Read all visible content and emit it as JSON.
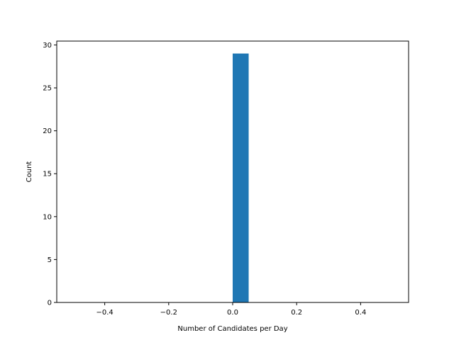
{
  "chart_data": {
    "type": "bar",
    "title": "",
    "xlabel": "Number of Candidates per Day",
    "ylabel": "Count",
    "xlim": [
      -0.55,
      0.55
    ],
    "ylim": [
      0,
      30.45
    ],
    "bars": [
      {
        "x_start": 0.0,
        "x_end": 0.05,
        "value": 29
      }
    ],
    "x_ticks": [
      {
        "value": -0.4,
        "label": "−0.4"
      },
      {
        "value": -0.2,
        "label": "−0.2"
      },
      {
        "value": 0.0,
        "label": "0.0"
      },
      {
        "value": 0.2,
        "label": "0.2"
      },
      {
        "value": 0.4,
        "label": "0.4"
      }
    ],
    "y_ticks": [
      {
        "value": 0,
        "label": "0"
      },
      {
        "value": 5,
        "label": "5"
      },
      {
        "value": 10,
        "label": "10"
      },
      {
        "value": 15,
        "label": "15"
      },
      {
        "value": 20,
        "label": "20"
      },
      {
        "value": 25,
        "label": "25"
      },
      {
        "value": 30,
        "label": "30"
      }
    ],
    "grid": false,
    "colors": {
      "bar": "#1f77b4",
      "axis": "#000000"
    }
  }
}
